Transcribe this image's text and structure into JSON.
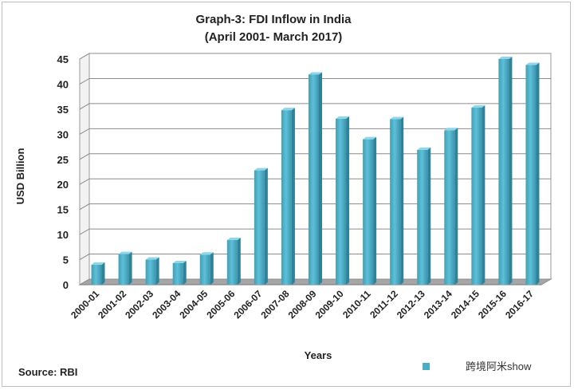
{
  "chart_data": {
    "type": "bar",
    "title": "Graph-3: FDI Inflow in India",
    "subtitle": "(April 2001- March 2017)",
    "xlabel": "Years",
    "ylabel": "USD Billion",
    "ylim": [
      0,
      45
    ],
    "yticks": [
      "0",
      "5",
      "10",
      "15",
      "20",
      "25",
      "30",
      "35",
      "40",
      "45"
    ],
    "grid": true,
    "categories": [
      "2000-01",
      "2001-02",
      "2002-03",
      "2003-04",
      "2004-05",
      "2005-06",
      "2006-07",
      "2007-08",
      "2008-09",
      "2009-10",
      "2010-11",
      "2011-12",
      "2012-13",
      "2013-14",
      "2014-15",
      "2015-16",
      "2016-17"
    ],
    "values": [
      4.0,
      6.1,
      5.0,
      4.3,
      6.0,
      8.9,
      22.8,
      34.8,
      41.9,
      33.1,
      29.0,
      33.0,
      26.9,
      30.8,
      35.3,
      45.0,
      43.8
    ],
    "bar_color": "#4bacc6",
    "source": "Source: RBI",
    "watermark": "跨境阿米show"
  }
}
